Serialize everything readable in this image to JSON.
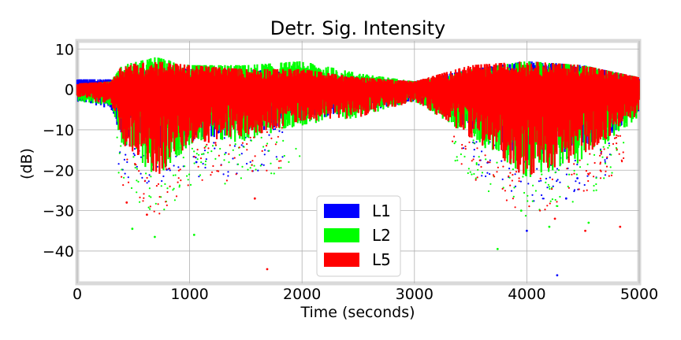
{
  "chart_data": {
    "type": "scatter",
    "title": "Detr. Sig. Intensity",
    "xlabel": "Time (seconds)",
    "ylabel": "(dB)",
    "xlim": [
      0,
      5000
    ],
    "ylim": [
      -48,
      12
    ],
    "xticks": [
      0,
      1000,
      2000,
      3000,
      4000,
      5000
    ],
    "yticks": [
      10,
      0,
      -10,
      -20,
      -30,
      -40
    ],
    "grid": true,
    "legend_position": "lower-center",
    "series": [
      {
        "name": "L1",
        "color": "#0000ff",
        "envelope": [
          {
            "t": 0,
            "hi": 2.5,
            "lo": -3
          },
          {
            "t": 300,
            "hi": 2.5,
            "lo": -5
          },
          {
            "t": 400,
            "hi": 4,
            "lo": -12
          },
          {
            "t": 700,
            "hi": 6,
            "lo": -16
          },
          {
            "t": 1000,
            "hi": 5,
            "lo": -13
          },
          {
            "t": 1500,
            "hi": 5,
            "lo": -11
          },
          {
            "t": 2000,
            "hi": 4,
            "lo": -8
          },
          {
            "t": 2500,
            "hi": 3,
            "lo": -6
          },
          {
            "t": 3000,
            "hi": 2,
            "lo": -3
          },
          {
            "t": 3500,
            "hi": 5,
            "lo": -10
          },
          {
            "t": 4000,
            "hi": 7,
            "lo": -18
          },
          {
            "t": 4500,
            "hi": 6,
            "lo": -16
          },
          {
            "t": 5000,
            "hi": 3,
            "lo": -6
          }
        ],
        "outliers": [
          {
            "x": 4270,
            "y": -46
          },
          {
            "x": 4000,
            "y": -35
          },
          {
            "x": 4450,
            "y": -22
          },
          {
            "x": 4350,
            "y": -27
          },
          {
            "x": 1060,
            "y": -18
          }
        ]
      },
      {
        "name": "L2",
        "color": "#00ff00",
        "envelope": [
          {
            "t": 0,
            "hi": 1,
            "lo": -3
          },
          {
            "t": 300,
            "hi": 2,
            "lo": -4
          },
          {
            "t": 400,
            "hi": 6,
            "lo": -14
          },
          {
            "t": 700,
            "hi": 8,
            "lo": -22
          },
          {
            "t": 1000,
            "hi": 6,
            "lo": -14
          },
          {
            "t": 1500,
            "hi": 6,
            "lo": -13
          },
          {
            "t": 2000,
            "hi": 7,
            "lo": -9
          },
          {
            "t": 2500,
            "hi": 4,
            "lo": -7
          },
          {
            "t": 3000,
            "hi": 2,
            "lo": -3
          },
          {
            "t": 3500,
            "hi": 5,
            "lo": -12
          },
          {
            "t": 4000,
            "hi": 7,
            "lo": -22
          },
          {
            "t": 4500,
            "hi": 6,
            "lo": -18
          },
          {
            "t": 5000,
            "hi": 3,
            "lo": -7
          }
        ],
        "outliers": [
          {
            "x": 490,
            "y": -34.5
          },
          {
            "x": 690,
            "y": -36.5
          },
          {
            "x": 1040,
            "y": -36
          },
          {
            "x": 3740,
            "y": -39.5
          },
          {
            "x": 4200,
            "y": -34
          },
          {
            "x": 3950,
            "y": -30
          },
          {
            "x": 4550,
            "y": -33
          }
        ]
      },
      {
        "name": "L5",
        "color": "#ff0000",
        "envelope": [
          {
            "t": 0,
            "hi": 1.5,
            "lo": -2
          },
          {
            "t": 300,
            "hi": 2,
            "lo": -4
          },
          {
            "t": 400,
            "hi": 6,
            "lo": -14
          },
          {
            "t": 700,
            "hi": 7,
            "lo": -22
          },
          {
            "t": 1000,
            "hi": 6,
            "lo": -14
          },
          {
            "t": 1500,
            "hi": 5,
            "lo": -12
          },
          {
            "t": 2000,
            "hi": 5,
            "lo": -8
          },
          {
            "t": 2500,
            "hi": 3,
            "lo": -7
          },
          {
            "t": 3000,
            "hi": 2,
            "lo": -3
          },
          {
            "t": 3500,
            "hi": 6,
            "lo": -12
          },
          {
            "t": 4000,
            "hi": 7,
            "lo": -22
          },
          {
            "t": 4500,
            "hi": 6,
            "lo": -17
          },
          {
            "t": 5000,
            "hi": 3,
            "lo": -6
          }
        ],
        "outliers": [
          {
            "x": 1690,
            "y": -44.5
          },
          {
            "x": 620,
            "y": -31
          },
          {
            "x": 4250,
            "y": -32
          },
          {
            "x": 4520,
            "y": -35
          },
          {
            "x": 4830,
            "y": -34
          },
          {
            "x": 440,
            "y": -28
          },
          {
            "x": 1580,
            "y": -27
          }
        ]
      }
    ]
  }
}
